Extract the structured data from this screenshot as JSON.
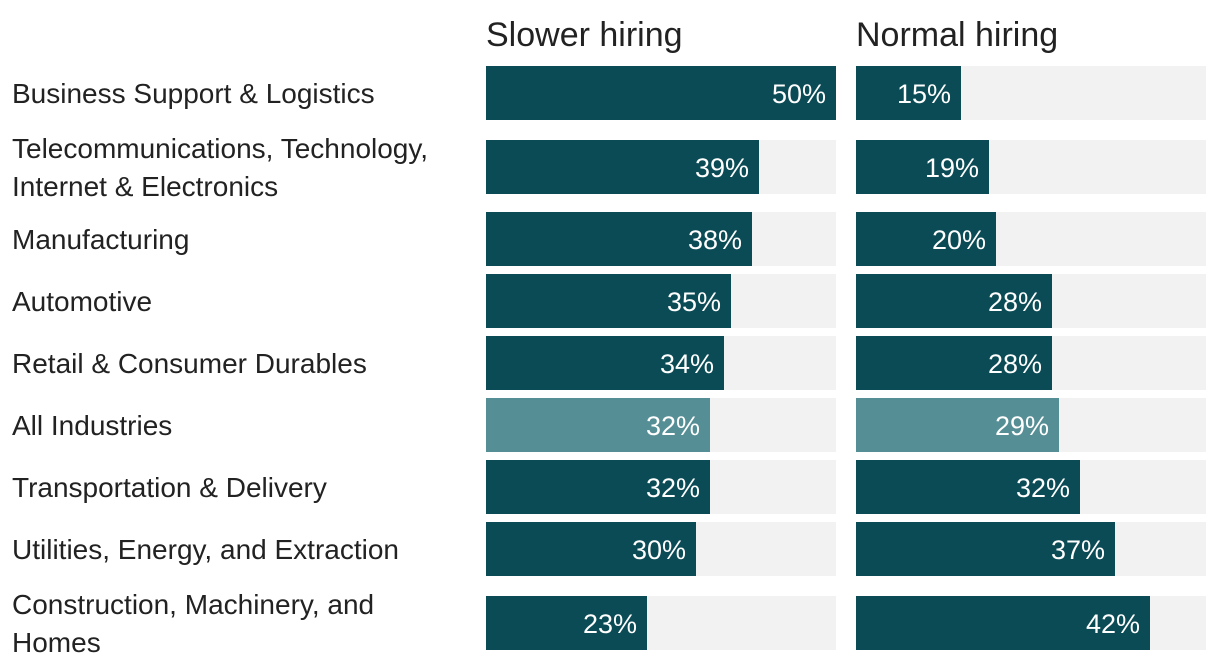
{
  "chart_data": {
    "type": "bar",
    "orientation": "horizontal",
    "categories": [
      [
        "Business Support & Logistics"
      ],
      [
        "Telecommunications, Technology,",
        "Internet & Electronics"
      ],
      [
        "Manufacturing"
      ],
      [
        "Automotive"
      ],
      [
        "Retail & Consumer Durables"
      ],
      [
        "All Industries"
      ],
      [
        "Transportation & Delivery"
      ],
      [
        "Utilities, Energy, and Extraction"
      ],
      [
        "Construction, Machinery, and",
        "Homes"
      ]
    ],
    "highlight_category_index": 5,
    "series": [
      {
        "name": "Slower hiring",
        "values": [
          50,
          39,
          38,
          35,
          34,
          32,
          32,
          30,
          23
        ],
        "labels": [
          "50%",
          "39%",
          "38%",
          "35%",
          "34%",
          "32%",
          "32%",
          "30%",
          "23%"
        ]
      },
      {
        "name": "Normal hiring",
        "values": [
          15,
          19,
          20,
          28,
          28,
          29,
          32,
          37,
          42
        ],
        "labels": [
          "15%",
          "19%",
          "20%",
          "28%",
          "28%",
          "29%",
          "32%",
          "37%",
          "42%"
        ]
      }
    ],
    "xlim": [
      0,
      50
    ],
    "colors": {
      "bar": "#0a4b55",
      "highlight_bar": "#568e96",
      "track": "#f2f2f2",
      "value_text": "#ffffff",
      "label_text": "#222222"
    }
  }
}
